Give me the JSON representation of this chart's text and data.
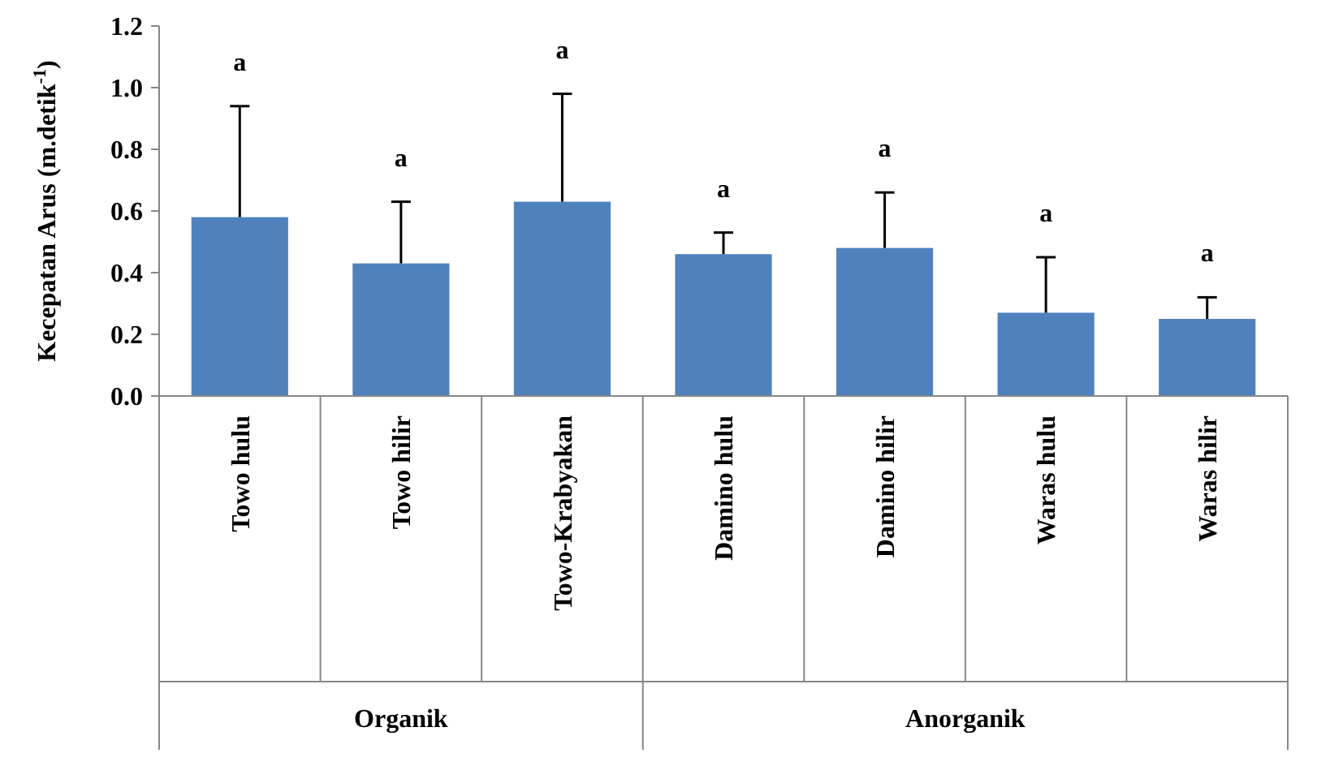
{
  "chart_data": {
    "type": "bar",
    "ylabel": "Kecepatan Arus (m.detik$^{-1}$)",
    "categories": [
      "Towo hulu",
      "Towo hilir",
      "Towo-Krabyakan",
      "Damino hulu",
      "Damino hilir",
      "Waras hulu",
      "Waras hilir"
    ],
    "values": [
      0.58,
      0.43,
      0.63,
      0.46,
      0.48,
      0.27,
      0.25
    ],
    "errors": [
      [
        0.58,
        0.94
      ],
      [
        0.43,
        0.63
      ],
      [
        0.63,
        0.98
      ],
      [
        0.46,
        0.53
      ],
      [
        0.48,
        0.66
      ],
      [
        0.27,
        0.45
      ],
      [
        0.25,
        0.32
      ]
    ],
    "color": "#4f81bd",
    "ylim": [
      0,
      1.2
    ],
    "yticks": [
      {
        "value": 0,
        "label": "0.0"
      },
      {
        "value": 0.2,
        "label": "0.2"
      },
      {
        "value": 0.4,
        "label": "0.4"
      },
      {
        "value": 0.6,
        "label": "0.6"
      },
      {
        "value": 0.8,
        "label": "0.8"
      },
      {
        "value": 1,
        "label": "1.0"
      },
      {
        "value": 1.2,
        "label": "1.2"
      }
    ],
    "annotations": [
      "a",
      "a",
      "a",
      "a",
      "a",
      "a",
      "a",
      "Organik",
      "Anorganik"
    ],
    "grid": false
  }
}
